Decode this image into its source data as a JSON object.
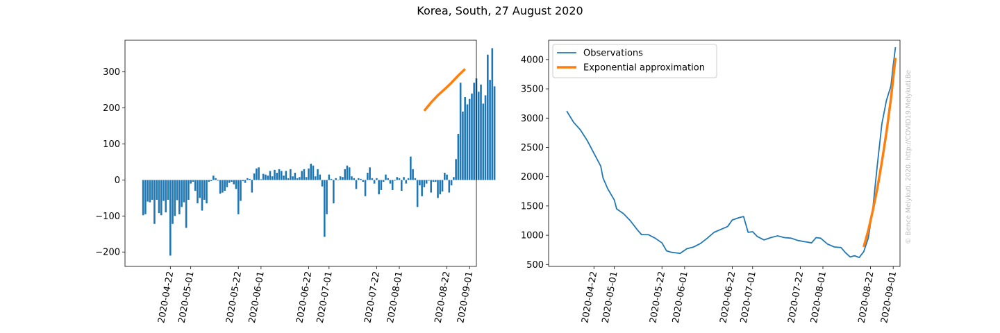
{
  "title": "Korea, South, 27 August 2020",
  "watermark": "© Bence Melykuti, 2020. http://COVID19.Melykuti.Be",
  "colors": {
    "bar": "#1f77b4",
    "observations": "#1f77b4",
    "exponential": "#ff7f0e"
  },
  "chart_data": [
    {
      "type": "bar",
      "x_type": "date",
      "x_range": [
        "2020-04-02",
        "2020-09-04"
      ],
      "ylim": [
        -240,
        388
      ],
      "xticks": [
        "2020-04-22",
        "2020-05-01",
        "2020-05-22",
        "2020-06-01",
        "2020-06-22",
        "2020-07-01",
        "2020-07-22",
        "2020-08-01",
        "2020-08-22",
        "2020-09-01"
      ],
      "yticks": [
        -200,
        -100,
        0,
        100,
        200,
        300
      ],
      "ytick_labels": [
        "−200",
        "−100",
        "0",
        "100",
        "200",
        "300"
      ],
      "start_date": "2020-04-10",
      "values": [
        -98,
        -95,
        -60,
        -62,
        -55,
        -122,
        -55,
        -92,
        -98,
        -58,
        -90,
        -55,
        -210,
        -122,
        -100,
        -56,
        -95,
        -75,
        -62,
        -133,
        -55,
        -10,
        -5,
        -30,
        -65,
        -50,
        -85,
        -55,
        -65,
        -5,
        -3,
        12,
        5,
        -2,
        -38,
        -35,
        -30,
        -20,
        -8,
        -5,
        -12,
        -25,
        -95,
        -58,
        -3,
        -8,
        5,
        3,
        -35,
        18,
        32,
        35,
        2,
        17,
        15,
        12,
        25,
        10,
        28,
        20,
        30,
        25,
        12,
        25,
        5,
        30,
        10,
        20,
        5,
        8,
        25,
        30,
        8,
        32,
        45,
        40,
        10,
        30,
        15,
        -18,
        -158,
        -95,
        15,
        3,
        -65,
        5,
        0,
        10,
        8,
        30,
        40,
        35,
        10,
        5,
        -25,
        5,
        3,
        -5,
        -45,
        20,
        35,
        5,
        -10,
        5,
        -40,
        -28,
        -5,
        15,
        5,
        -10,
        -28,
        -2,
        8,
        5,
        -30,
        8,
        -10,
        5,
        65,
        30,
        5,
        -75,
        -15,
        -45,
        -20,
        -10,
        -2,
        -35,
        -5,
        -5,
        -50,
        -40,
        -32,
        20,
        15,
        -35,
        -15,
        8,
        58,
        128,
        270,
        190,
        230,
        210,
        225,
        240,
        270,
        282,
        245,
        265,
        212,
        235,
        348,
        278,
        366,
        260
      ]
    },
    {
      "type": "line",
      "x_type": "date",
      "x_range": [
        "2020-04-02",
        "2020-09-04"
      ],
      "ylim": [
        468,
        4330
      ],
      "xticks": [
        "2020-04-22",
        "2020-05-01",
        "2020-05-22",
        "2020-06-01",
        "2020-06-22",
        "2020-07-01",
        "2020-07-22",
        "2020-08-01",
        "2020-08-22",
        "2020-09-01"
      ],
      "yticks": [
        500,
        1000,
        1500,
        2000,
        2500,
        3000,
        3500,
        4000
      ],
      "legend": {
        "position": "top-left",
        "entries": [
          "Observations",
          "Exponential approximation"
        ]
      },
      "series": [
        {
          "name": "Observations",
          "points": [
            [
              "2020-04-10",
              3120
            ],
            [
              "2020-04-13",
              2930
            ],
            [
              "2020-04-16",
              2800
            ],
            [
              "2020-04-19",
              2620
            ],
            [
              "2020-04-22",
              2400
            ],
            [
              "2020-04-25",
              2180
            ],
            [
              "2020-04-26",
              1980
            ],
            [
              "2020-04-28",
              1800
            ],
            [
              "2020-05-01",
              1600
            ],
            [
              "2020-05-02",
              1450
            ],
            [
              "2020-05-05",
              1370
            ],
            [
              "2020-05-08",
              1250
            ],
            [
              "2020-05-11",
              1100
            ],
            [
              "2020-05-13",
              1010
            ],
            [
              "2020-05-16",
              1010
            ],
            [
              "2020-05-19",
              950
            ],
            [
              "2020-05-22",
              870
            ],
            [
              "2020-05-24",
              735
            ],
            [
              "2020-05-26",
              710
            ],
            [
              "2020-05-28",
              700
            ],
            [
              "2020-05-30",
              690
            ],
            [
              "2020-06-02",
              770
            ],
            [
              "2020-06-05",
              800
            ],
            [
              "2020-06-08",
              860
            ],
            [
              "2020-06-11",
              950
            ],
            [
              "2020-06-14",
              1050
            ],
            [
              "2020-06-17",
              1100
            ],
            [
              "2020-06-20",
              1150
            ],
            [
              "2020-06-22",
              1260
            ],
            [
              "2020-06-25",
              1300
            ],
            [
              "2020-06-27",
              1320
            ],
            [
              "2020-06-29",
              1050
            ],
            [
              "2020-07-01",
              1060
            ],
            [
              "2020-07-03",
              980
            ],
            [
              "2020-07-06",
              920
            ],
            [
              "2020-07-09",
              960
            ],
            [
              "2020-07-12",
              990
            ],
            [
              "2020-07-15",
              960
            ],
            [
              "2020-07-18",
              950
            ],
            [
              "2020-07-21",
              910
            ],
            [
              "2020-07-24",
              890
            ],
            [
              "2020-07-27",
              870
            ],
            [
              "2020-07-29",
              960
            ],
            [
              "2020-07-31",
              950
            ],
            [
              "2020-08-03",
              850
            ],
            [
              "2020-08-06",
              800
            ],
            [
              "2020-08-09",
              790
            ],
            [
              "2020-08-11",
              700
            ],
            [
              "2020-08-13",
              630
            ],
            [
              "2020-08-15",
              650
            ],
            [
              "2020-08-17",
              620
            ],
            [
              "2020-08-19",
              720
            ],
            [
              "2020-08-21",
              950
            ],
            [
              "2020-08-23",
              1450
            ],
            [
              "2020-08-25",
              2200
            ],
            [
              "2020-08-27",
              2900
            ],
            [
              "2020-08-29",
              3300
            ],
            [
              "2020-08-31",
              3550
            ],
            [
              "2020-09-01",
              3900
            ],
            [
              "2020-09-02",
              4210
            ]
          ]
        },
        {
          "name": "Exponential approximation",
          "points": [
            [
              "2020-08-19",
              800
            ],
            [
              "2020-08-21",
              1080
            ],
            [
              "2020-08-23",
              1420
            ],
            [
              "2020-08-25",
              1800
            ],
            [
              "2020-08-27",
              2250
            ],
            [
              "2020-08-29",
              2750
            ],
            [
              "2020-08-31",
              3330
            ],
            [
              "2020-09-02",
              4030
            ]
          ]
        }
      ]
    },
    {
      "type": "line",
      "x_type": "date",
      "x_range": [
        "2020-04-02",
        "2020-09-04"
      ],
      "ylim": [
        -240,
        388
      ],
      "series": [
        {
          "points": [
            [
              "2020-08-12",
              192
            ],
            [
              "2020-08-15",
              215
            ],
            [
              "2020-08-18",
              235
            ],
            [
              "2020-08-21",
              252
            ],
            [
              "2020-08-24",
              270
            ],
            [
              "2020-08-27",
              290
            ],
            [
              "2020-08-30",
              308
            ]
          ]
        }
      ]
    }
  ]
}
